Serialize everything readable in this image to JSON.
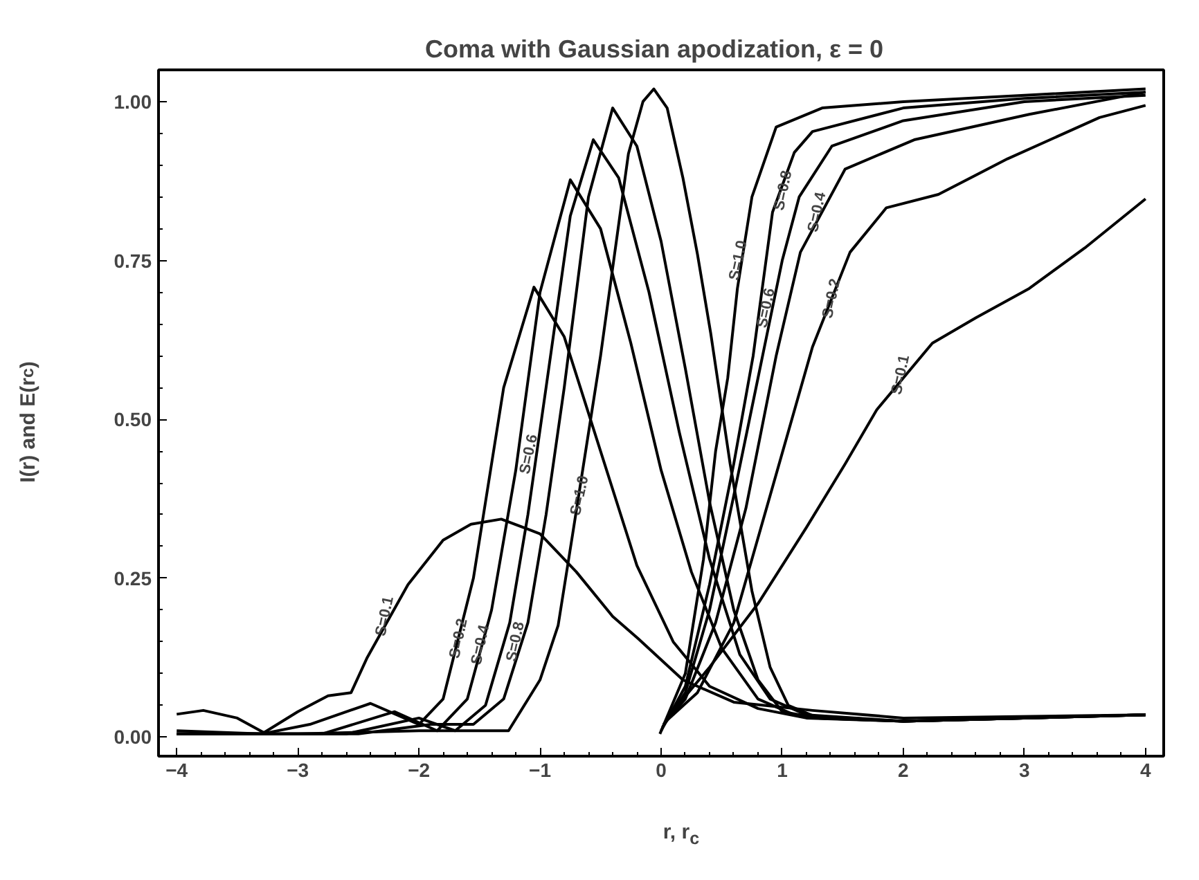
{
  "chart_data": {
    "type": "line",
    "title": "Coma with Gaussian apodization,   ε = 0",
    "xlabel": "r, r$_{c}$",
    "ylabel": "I(r) and E(r$_{c}$)",
    "xlim": [
      -4.15,
      4.15
    ],
    "ylim": [
      -0.03,
      1.05
    ],
    "xticks": [
      -4,
      -3,
      -2,
      -1,
      0,
      1,
      2,
      3,
      4
    ],
    "yticks": [
      {
        "value": 0,
        "label": "0.00"
      },
      {
        "value": 0.25,
        "label": "0.25"
      },
      {
        "value": 0.5,
        "label": "0.50"
      },
      {
        "value": 0.75,
        "label": "0.75"
      },
      {
        "value": 1,
        "label": "1.00"
      }
    ],
    "grid": false,
    "marker": "none",
    "line_style": "solid",
    "series": [
      {
        "color": "#000000",
        "x": [
          -4,
          -3.78,
          -3.5,
          -3.28,
          -3.0,
          -2.75,
          -2.56,
          -2.43,
          -2.09,
          -1.8,
          -1.57,
          -1.32,
          -1.0,
          -0.7,
          -0.4,
          -0.19,
          0.18,
          0.6,
          1.25,
          2,
          4
        ],
        "values": [
          0.036,
          0.042,
          0.03,
          0.007,
          0.04,
          0.065,
          0.07,
          0.124,
          0.24,
          0.31,
          0.335,
          0.343,
          0.32,
          0.26,
          0.19,
          0.155,
          0.09,
          0.055,
          0.042,
          0.03,
          0.035
        ]
      },
      {
        "color": "#000000",
        "x": [
          -4,
          -3.3,
          -2.9,
          -2.4,
          -2.0,
          -1.8,
          -1.55,
          -1.3,
          -1.05,
          -0.8,
          -0.5,
          -0.2,
          0.1,
          0.4,
          0.8,
          1.2,
          2,
          4
        ],
        "values": [
          0.01,
          0.005,
          0.02,
          0.053,
          0.02,
          0.06,
          0.25,
          0.55,
          0.708,
          0.63,
          0.45,
          0.27,
          0.15,
          0.08,
          0.045,
          0.03,
          0.025,
          0.035
        ]
      },
      {
        "color": "#000000",
        "x": [
          -4,
          -2.8,
          -2.2,
          -1.85,
          -1.6,
          -1.4,
          -1.2,
          -1.0,
          -0.75,
          -0.5,
          -0.25,
          0,
          0.25,
          0.5,
          0.8,
          1.1,
          2,
          4
        ],
        "values": [
          0.005,
          0.005,
          0.04,
          0.01,
          0.06,
          0.2,
          0.42,
          0.7,
          0.877,
          0.8,
          0.62,
          0.42,
          0.26,
          0.14,
          0.06,
          0.035,
          0.025,
          0.035
        ]
      },
      {
        "color": "#000000",
        "x": [
          -4,
          -2.6,
          -2.0,
          -1.7,
          -1.45,
          -1.25,
          -1.1,
          -0.95,
          -0.75,
          -0.56,
          -0.35,
          -0.1,
          0.15,
          0.4,
          0.65,
          0.9,
          1.2,
          2,
          4
        ],
        "values": [
          0.005,
          0.005,
          0.03,
          0.01,
          0.05,
          0.18,
          0.35,
          0.55,
          0.82,
          0.94,
          0.88,
          0.7,
          0.48,
          0.28,
          0.13,
          0.06,
          0.035,
          0.025,
          0.035
        ]
      },
      {
        "color": "#000000",
        "x": [
          -4,
          -2.5,
          -1.9,
          -1.55,
          -1.3,
          -1.1,
          -0.95,
          -0.8,
          -0.6,
          -0.4,
          -0.2,
          0,
          0.2,
          0.4,
          0.6,
          0.8,
          1.0,
          1.3,
          2,
          4
        ],
        "values": [
          0.005,
          0.005,
          0.02,
          0.02,
          0.06,
          0.18,
          0.35,
          0.55,
          0.85,
          0.99,
          0.93,
          0.78,
          0.58,
          0.37,
          0.2,
          0.09,
          0.04,
          0.03,
          0.025,
          0.035
        ]
      },
      {
        "color": "#000000",
        "x": [
          -4,
          -3,
          -2,
          -1.5,
          -1.26,
          -1.0,
          -0.85,
          -0.73,
          -0.5,
          -0.27,
          -0.15,
          -0.06,
          0.05,
          0.18,
          0.3,
          0.41,
          0.57,
          0.75,
          0.9,
          1.05,
          1.3,
          2,
          3,
          4
        ],
        "values": [
          0.005,
          0.005,
          0.01,
          0.01,
          0.01,
          0.09,
          0.176,
          0.32,
          0.6,
          0.918,
          1.0,
          1.02,
          0.99,
          0.88,
          0.76,
          0.635,
          0.43,
          0.23,
          0.11,
          0.05,
          0.03,
          0.025,
          0.03,
          0.035
        ]
      },
      {
        "color": "#000000",
        "x": [
          0.05,
          0.4,
          0.8,
          1.2,
          1.52,
          1.78,
          2.24,
          2.6,
          3.04,
          3.5,
          4.0
        ],
        "values": [
          0.03,
          0.11,
          0.21,
          0.33,
          0.43,
          0.515,
          0.62,
          0.66,
          0.706,
          0.77,
          0.847
        ]
      },
      {
        "color": "#000000",
        "x": [
          0.04,
          0.3,
          0.6,
          0.9,
          1.25,
          1.56,
          1.86,
          2.29,
          2.86,
          3.62,
          4.0
        ],
        "values": [
          0.025,
          0.07,
          0.18,
          0.38,
          0.614,
          0.763,
          0.833,
          0.854,
          0.91,
          0.975,
          0.994
        ]
      },
      {
        "color": "#000000",
        "x": [
          0.02,
          0.2,
          0.45,
          0.7,
          0.95,
          1.15,
          1.52,
          2.09,
          3.04,
          4.0
        ],
        "values": [
          0.02,
          0.06,
          0.18,
          0.36,
          0.6,
          0.763,
          0.894,
          0.94,
          0.98,
          1.015
        ]
      },
      {
        "color": "#000000",
        "x": [
          0.01,
          0.2,
          0.4,
          0.6,
          0.8,
          1.0,
          1.14,
          1.41,
          2.0,
          3.0,
          4.0
        ],
        "values": [
          0.015,
          0.07,
          0.2,
          0.38,
          0.565,
          0.75,
          0.85,
          0.93,
          0.97,
          1.0,
          1.01
        ]
      },
      {
        "color": "#000000",
        "x": [
          0.0,
          0.2,
          0.4,
          0.6,
          0.76,
          0.92,
          1.1,
          1.25,
          2.0,
          3.0,
          4.0
        ],
        "values": [
          0.01,
          0.08,
          0.24,
          0.43,
          0.6,
          0.826,
          0.92,
          0.953,
          0.99,
          1.005,
          1.015
        ]
      },
      {
        "color": "#000000",
        "x": [
          -0.01,
          0.2,
          0.35,
          0.45,
          0.55,
          0.63,
          0.75,
          0.95,
          1.33,
          2.0,
          3.0,
          4.0
        ],
        "values": [
          0.005,
          0.1,
          0.28,
          0.45,
          0.565,
          0.706,
          0.85,
          0.96,
          0.99,
          1.0,
          1.01,
          1.02
        ]
      }
    ],
    "annotations": [
      {
        "text": "S=0.1",
        "x": -2.28,
        "y": 0.19
      },
      {
        "text": "S=0.2",
        "x": -1.67,
        "y": 0.155
      },
      {
        "text": "S=0.4",
        "x": -1.49,
        "y": 0.145
      },
      {
        "text": "S=0.8",
        "x": -1.2,
        "y": 0.15
      },
      {
        "text": "S=0.6",
        "x": -1.09,
        "y": 0.445
      },
      {
        "text": "S=1.0",
        "x": -0.67,
        "y": 0.38
      },
      {
        "text": "S=1.0",
        "x": 0.64,
        "y": 0.75
      },
      {
        "text": "S=0.8",
        "x": 1.01,
        "y": 0.86
      },
      {
        "text": "S=0.6",
        "x": 0.87,
        "y": 0.675
      },
      {
        "text": "S=0.4",
        "x": 1.29,
        "y": 0.826
      },
      {
        "text": "S=0.2",
        "x": 1.41,
        "y": 0.69
      },
      {
        "text": "S=0.1",
        "x": 1.98,
        "y": 0.57
      }
    ]
  }
}
